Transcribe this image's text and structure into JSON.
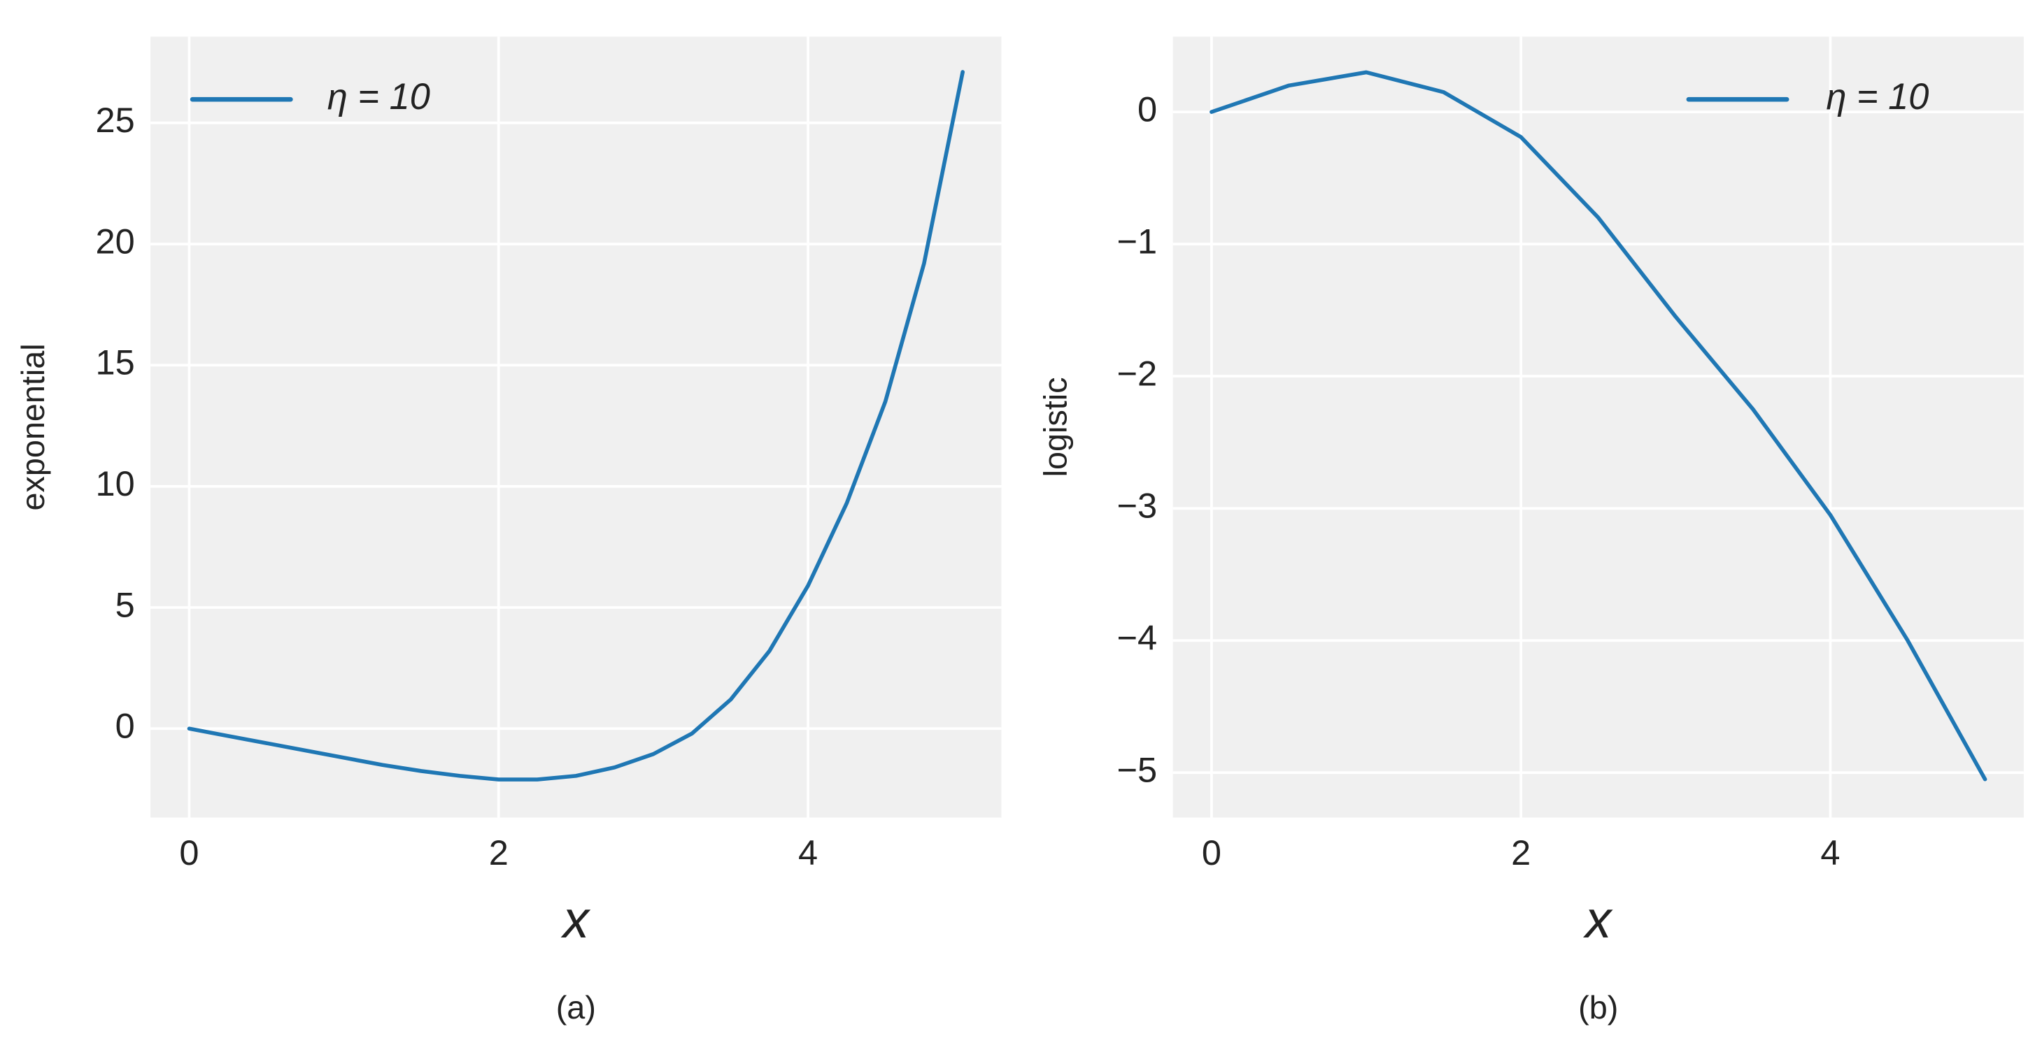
{
  "chart_data": [
    {
      "type": "line",
      "caption": "(a)",
      "xlabel": "x",
      "ylabel": "exponential",
      "x": [
        0,
        0.25,
        0.5,
        0.75,
        1,
        1.25,
        1.5,
        1.75,
        2,
        2.25,
        2.5,
        2.75,
        3,
        3.25,
        3.5,
        3.75,
        4,
        4.25,
        4.5,
        4.75,
        5
      ],
      "series": [
        {
          "name": "η = 10",
          "color": "#1f77b4",
          "values": [
            0,
            -0.3,
            -0.6,
            -0.9,
            -1.2,
            -1.5,
            -1.75,
            -1.95,
            -2.1,
            -2.1,
            -1.95,
            -1.6,
            -1.05,
            -0.2,
            1.2,
            3.2,
            5.9,
            9.3,
            13.5,
            19.2,
            27.1
          ]
        }
      ],
      "xlim": [
        -0.25,
        5.25
      ],
      "ylim": [
        -3.67,
        28.56
      ],
      "xticks": [
        0,
        2,
        4
      ],
      "yticks": [
        0,
        5,
        10,
        15,
        20,
        25
      ],
      "grid": true,
      "legend": "upper left"
    },
    {
      "type": "line",
      "caption": "(b)",
      "xlabel": "x",
      "ylabel": "logistic",
      "x": [
        0,
        0.5,
        1,
        1.5,
        2,
        2.5,
        3,
        3.5,
        4,
        4.5,
        5
      ],
      "series": [
        {
          "name": "η = 10",
          "color": "#1f77b4",
          "values": [
            0,
            0.2,
            0.3,
            0.15,
            -0.19,
            -0.8,
            -1.55,
            -2.25,
            -3.05,
            -4.0,
            -5.05
          ]
        }
      ],
      "xlim": [
        -0.25,
        5.25
      ],
      "ylim": [
        -5.34,
        0.57
      ],
      "xticks": [
        0,
        2,
        4
      ],
      "yticks": [
        {
          "value": -5,
          "label": "−5"
        },
        {
          "value": -4,
          "label": "−4"
        },
        {
          "value": -3,
          "label": "−3"
        },
        {
          "value": -2,
          "label": "−2"
        },
        {
          "value": -1,
          "label": "−1"
        },
        0
      ],
      "grid": true,
      "legend": "upper right"
    }
  ]
}
